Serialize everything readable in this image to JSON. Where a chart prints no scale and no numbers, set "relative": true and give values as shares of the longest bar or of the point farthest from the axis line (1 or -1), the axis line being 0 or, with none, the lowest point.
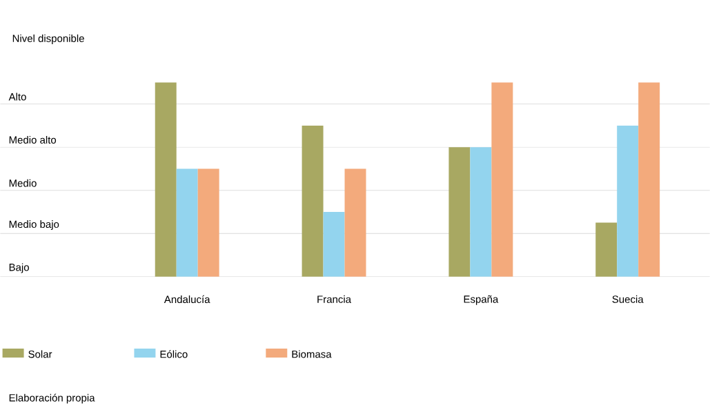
{
  "chart_data": {
    "type": "bar",
    "ylabel": "Nivel disponible",
    "relative": true,
    "categories": [
      "Andalucía",
      "Francia",
      "España",
      "Suecia"
    ],
    "series": [
      {
        "name": "Solar",
        "color": "#a8a862",
        "values": [
          1,
          0.778,
          0.667,
          0.278
        ]
      },
      {
        "name": "Eólico",
        "color": "#93d4ee",
        "values": [
          0.556,
          0.333,
          0.667,
          0.778
        ]
      },
      {
        "name": "Biomasa",
        "color": "#f3aa7c",
        "values": [
          0.556,
          0.556,
          1,
          1
        ]
      }
    ],
    "ref_lines": [
      {
        "axis": "y",
        "value": 0,
        "label": "Bajo",
        "color": "#d0d0d0"
      },
      {
        "axis": "y",
        "value": 0.222,
        "label": "Medio bajo",
        "color": "#d0d0d0"
      },
      {
        "axis": "y",
        "value": 0.444,
        "label": "Medio",
        "color": "#d0d0d0"
      },
      {
        "axis": "y",
        "value": 0.667,
        "label": "Medio alto",
        "color": "#d0d0d0"
      },
      {
        "axis": "y",
        "value": 0.889,
        "label": "Alto",
        "color": "#d0d0d0"
      }
    ],
    "legend": "bottom left",
    "annotations": [
      "Elaboración propia"
    ]
  }
}
